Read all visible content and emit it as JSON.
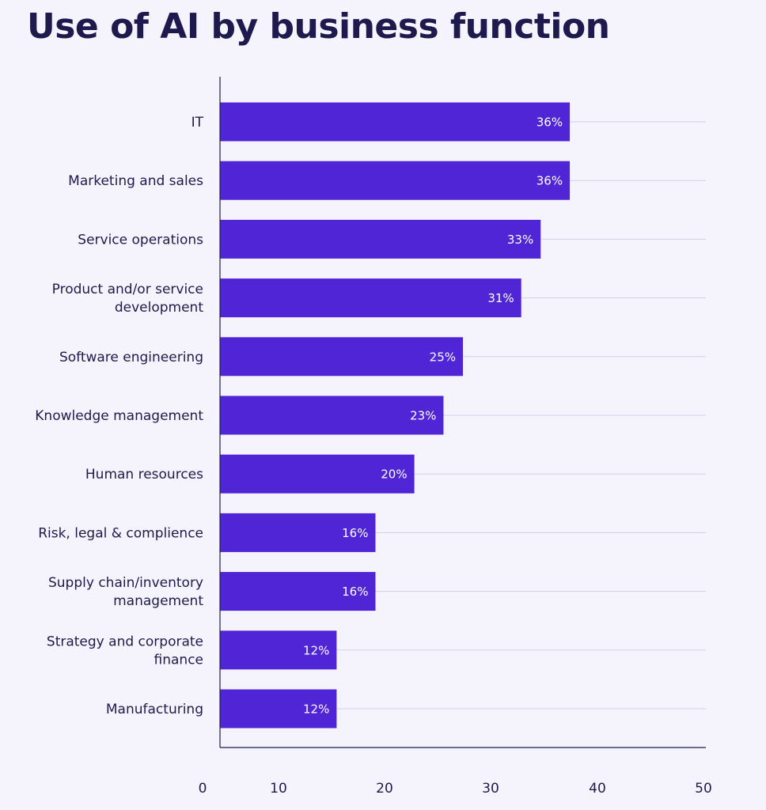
{
  "chart_data": {
    "type": "bar",
    "orientation": "horizontal",
    "title": "Use of AI by business function",
    "categories": [
      "IT",
      "Marketing and sales",
      "Service operations",
      "Product and/or service development",
      "Software engineering",
      "Knowledge management",
      "Human resources",
      "Risk, legal & complience",
      "Supply chain/inventory management",
      "Strategy and corporate finance",
      "Manufacturing"
    ],
    "category_lines": [
      [
        "IT"
      ],
      [
        "Marketing and sales"
      ],
      [
        "Service operations"
      ],
      [
        "Product and/or service",
        "development"
      ],
      [
        "Software engineering"
      ],
      [
        "Knowledge management"
      ],
      [
        "Human resources"
      ],
      [
        "Risk, legal & complience"
      ],
      [
        "Supply chain/inventory",
        "management"
      ],
      [
        "Strategy and corporate",
        "finance"
      ],
      [
        "Manufacturing"
      ]
    ],
    "values": [
      36,
      36,
      33,
      31,
      25,
      23,
      20,
      16,
      16,
      12,
      12
    ],
    "value_labels": [
      "36%",
      "36%",
      "33%",
      "31%",
      "25%",
      "23%",
      "20%",
      "16%",
      "16%",
      "12%",
      "12%"
    ],
    "x_ticks": [
      0,
      10,
      20,
      30,
      40,
      50
    ],
    "xlim": [
      0,
      50
    ],
    "xlabel": "",
    "ylabel": "",
    "grid": true,
    "colors": {
      "bar": "#4f25d6",
      "grid": "#cfd0e6",
      "axis": "#1e1b4b",
      "background": "#f5f4fd"
    }
  }
}
